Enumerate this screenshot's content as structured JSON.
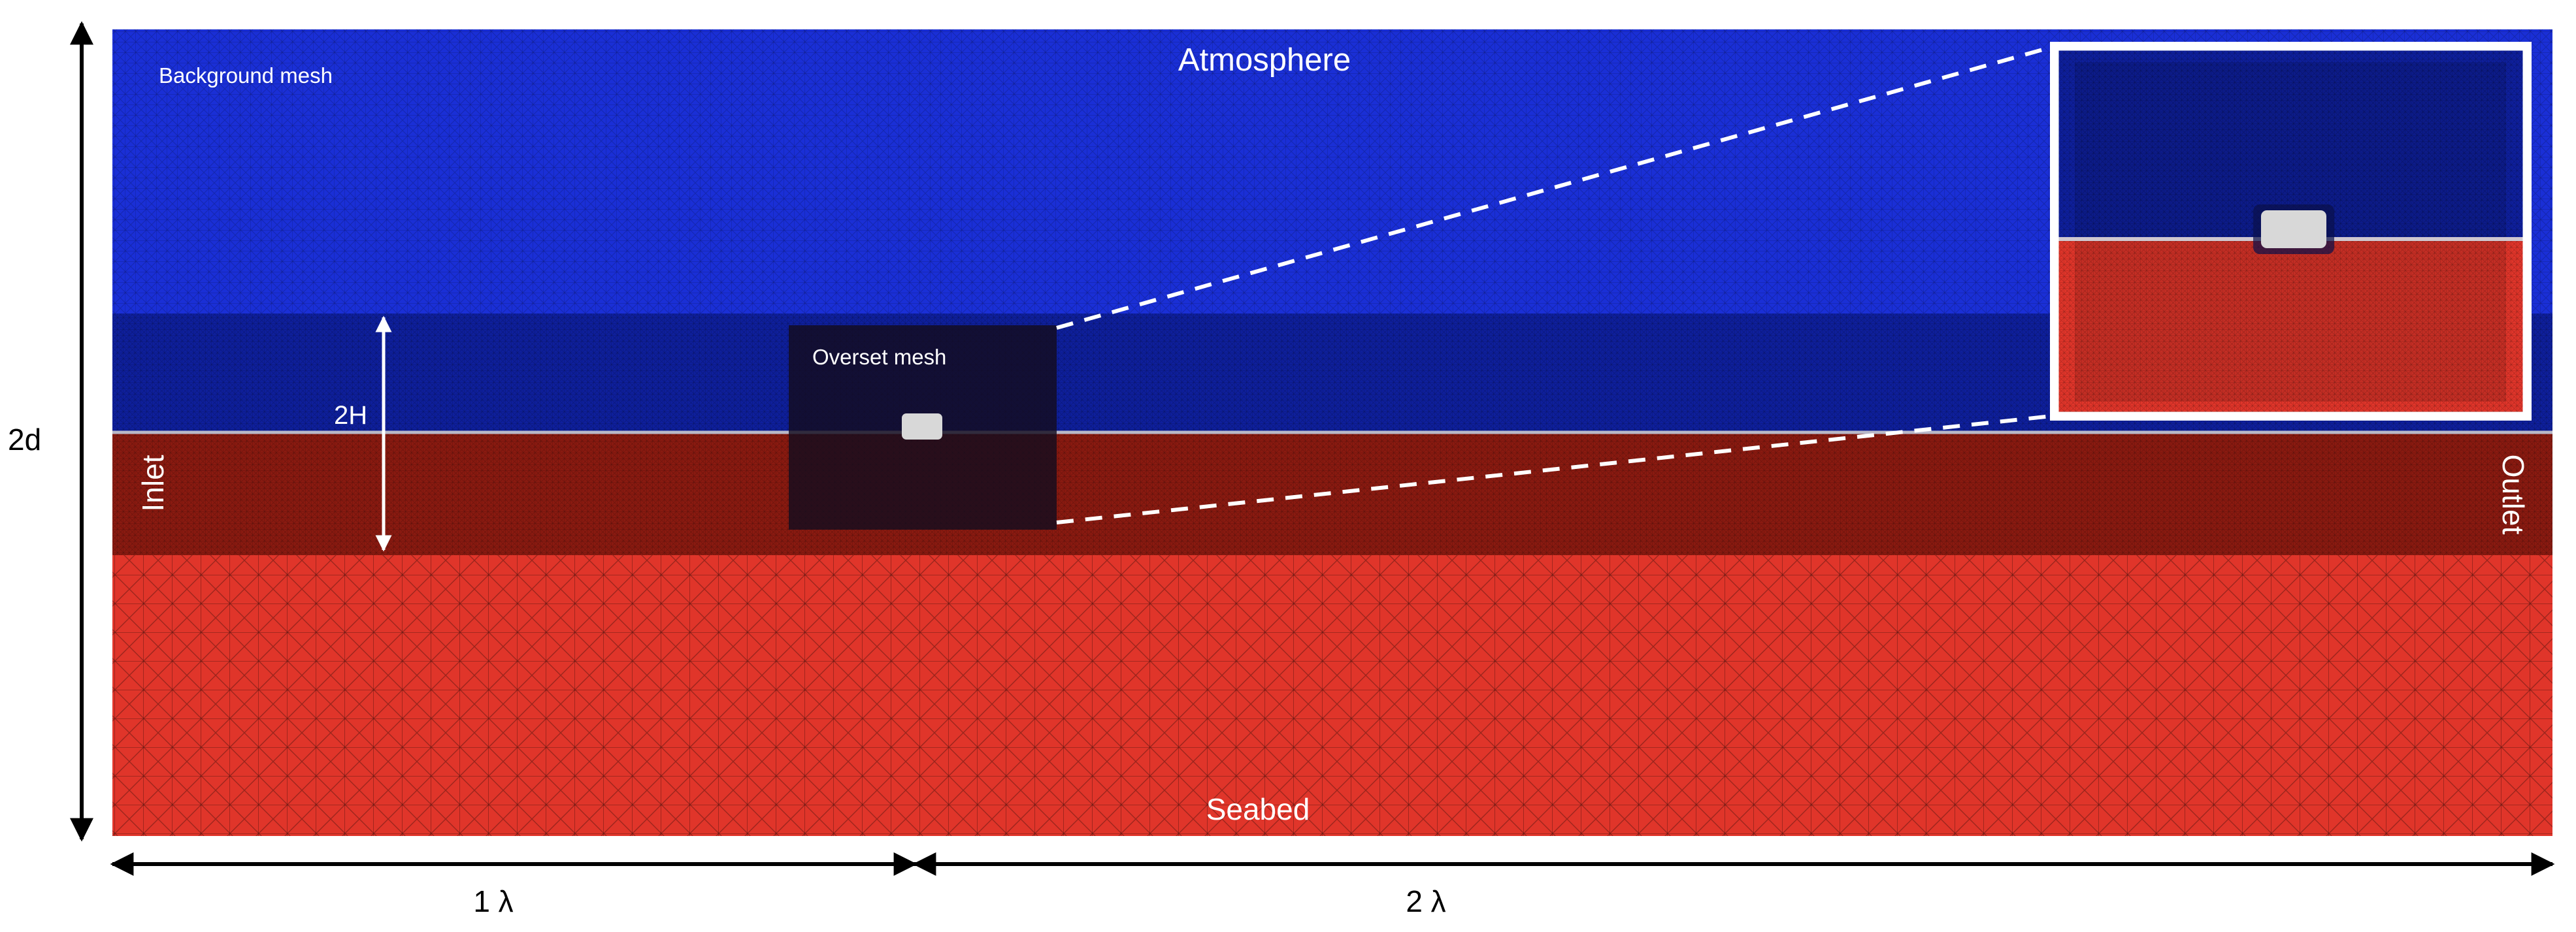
{
  "labels": {
    "background_mesh": "Background mesh",
    "atmosphere": "Atmosphere",
    "overset_mesh": "Overset mesh",
    "seabed": "Seabed",
    "inlet": "Inlet",
    "outlet": "Outlet",
    "wave_height": "2H",
    "depth": "2d",
    "inlet_span": "1 λ",
    "outlet_span": "2 λ"
  },
  "colors": {
    "air": "#1a2fd6",
    "air_dark": "#0e1f9c",
    "water_dark": "#8a1a10",
    "water": "#e0352a",
    "overset_box": "#140c1e",
    "body": "#d8d8d8",
    "annotation": "#ffffff",
    "dimension": "#000000"
  }
}
